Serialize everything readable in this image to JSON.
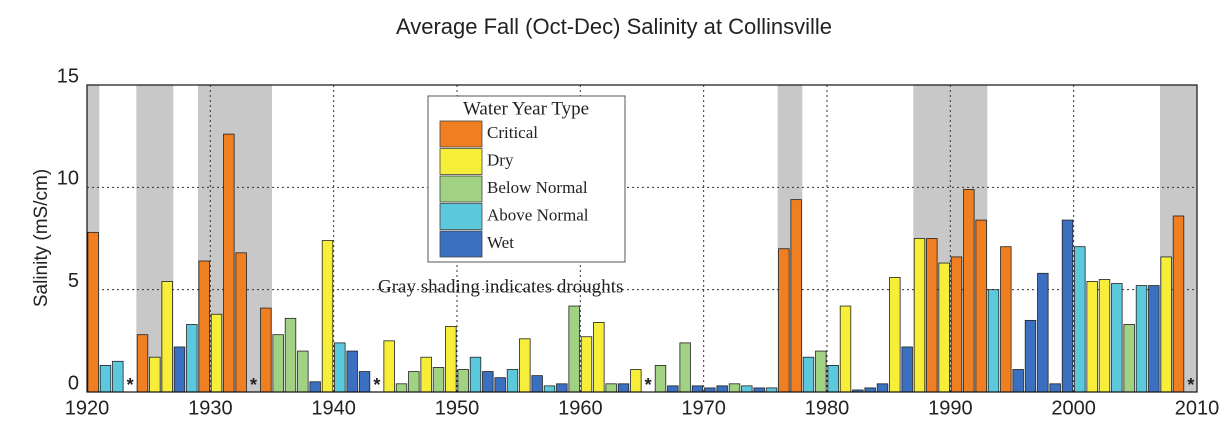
{
  "chart_data": {
    "type": "bar",
    "title": "Average Fall (Oct-Dec) Salinity at Collinsville",
    "y_label": "Salinity (mS/cm)",
    "annotation": "Gray shading indicates droughts",
    "missing_label": "*",
    "legend": {
      "title": "Water Year Type",
      "items": [
        {
          "name": "Critical",
          "color": "#f07f22"
        },
        {
          "name": "Dry",
          "color": "#f7ee3a"
        },
        {
          "name": "Below Normal",
          "color": "#a1d283"
        },
        {
          "name": "Above Normal",
          "color": "#5cc8dc"
        },
        {
          "name": "Wet",
          "color": "#3b6fbf"
        }
      ]
    },
    "shading_color": "#c8c8c8",
    "droughts": [
      [
        1920,
        1921
      ],
      [
        1924,
        1927
      ],
      [
        1929,
        1935
      ],
      [
        1976,
        1978
      ],
      [
        1987,
        1993
      ],
      [
        2007,
        2010
      ]
    ],
    "x": [
      1920,
      1921,
      1922,
      1923,
      1924,
      1925,
      1926,
      1927,
      1928,
      1929,
      1930,
      1931,
      1932,
      1933,
      1934,
      1935,
      1936,
      1937,
      1938,
      1939,
      1940,
      1941,
      1942,
      1943,
      1944,
      1945,
      1946,
      1947,
      1948,
      1949,
      1950,
      1951,
      1952,
      1953,
      1954,
      1955,
      1956,
      1957,
      1958,
      1959,
      1960,
      1961,
      1962,
      1963,
      1964,
      1965,
      1966,
      1967,
      1968,
      1969,
      1970,
      1971,
      1972,
      1973,
      1974,
      1975,
      1976,
      1977,
      1978,
      1979,
      1980,
      1981,
      1982,
      1983,
      1984,
      1985,
      1986,
      1987,
      1988,
      1989,
      1990,
      1991,
      1992,
      1993,
      1994,
      1995,
      1996,
      1997,
      1998,
      1999,
      2000,
      2001,
      2002,
      2003,
      2004,
      2005,
      2006,
      2007,
      2008,
      2009
    ],
    "values": [
      7.8,
      1.3,
      1.5,
      null,
      2.8,
      1.7,
      5.4,
      2.2,
      3.3,
      6.4,
      3.8,
      12.6,
      6.8,
      null,
      4.1,
      2.8,
      3.6,
      2.0,
      0.5,
      7.4,
      2.4,
      2.0,
      1.0,
      null,
      2.5,
      0.4,
      1.0,
      1.7,
      1.2,
      3.2,
      1.1,
      1.7,
      1.0,
      0.7,
      1.1,
      2.6,
      0.8,
      0.3,
      0.4,
      4.2,
      2.7,
      3.4,
      0.4,
      0.4,
      1.1,
      null,
      1.3,
      0.3,
      2.4,
      0.3,
      0.2,
      0.3,
      0.4,
      0.3,
      0.2,
      0.2,
      7.0,
      9.4,
      1.7,
      2.0,
      1.3,
      4.2,
      0.1,
      0.2,
      0.4,
      5.6,
      2.2,
      7.5,
      7.5,
      6.3,
      6.6,
      9.9,
      8.4,
      5.0,
      7.1,
      1.1,
      3.5,
      5.8,
      0.4,
      8.4,
      7.1,
      5.4,
      5.5,
      5.3,
      3.3,
      5.2,
      5.2,
      6.6,
      8.6,
      null
    ],
    "year_types": [
      "Critical",
      "Above Normal",
      "Above Normal",
      null,
      "Critical",
      "Dry",
      "Dry",
      "Wet",
      "Above Normal",
      "Critical",
      "Dry",
      "Critical",
      "Critical",
      null,
      "Critical",
      "Below Normal",
      "Below Normal",
      "Below Normal",
      "Wet",
      "Dry",
      "Above Normal",
      "Wet",
      "Wet",
      null,
      "Dry",
      "Below Normal",
      "Below Normal",
      "Dry",
      "Below Normal",
      "Dry",
      "Below Normal",
      "Above Normal",
      "Wet",
      "Wet",
      "Above Normal",
      "Dry",
      "Wet",
      "Above Normal",
      "Wet",
      "Below Normal",
      "Dry",
      "Dry",
      "Below Normal",
      "Wet",
      "Dry",
      null,
      "Below Normal",
      "Wet",
      "Below Normal",
      "Wet",
      "Wet",
      "Wet",
      "Below Normal",
      "Above Normal",
      "Wet",
      "Above Normal",
      "Critical",
      "Critical",
      "Above Normal",
      "Below Normal",
      "Above Normal",
      "Dry",
      "Wet",
      "Wet",
      "Wet",
      "Dry",
      "Wet",
      "Dry",
      "Critical",
      "Dry",
      "Critical",
      "Critical",
      "Critical",
      "Above Normal",
      "Critical",
      "Wet",
      "Wet",
      "Wet",
      "Wet",
      "Wet",
      "Above Normal",
      "Dry",
      "Dry",
      "Above Normal",
      "Below Normal",
      "Above Normal",
      "Wet",
      "Dry",
      "Critical",
      null
    ],
    "xlim": [
      1920,
      2010
    ],
    "xticks": [
      1920,
      1930,
      1940,
      1950,
      1960,
      1970,
      1980,
      1990,
      2000,
      2010
    ],
    "ylim": [
      0,
      15
    ],
    "yticks": [
      0,
      5,
      10,
      15
    ],
    "grid": true
  }
}
